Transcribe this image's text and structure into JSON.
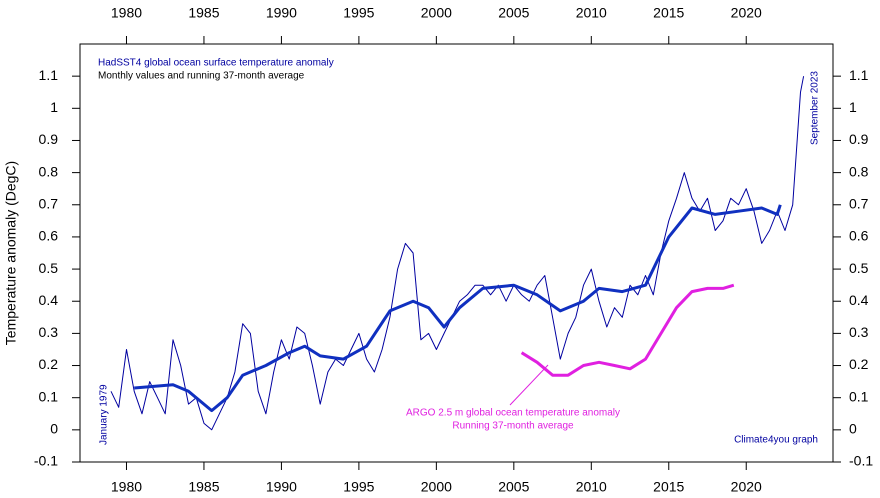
{
  "chart_data": {
    "type": "line",
    "ylabel": "Temperature anomaly (DegC)",
    "annotations": {
      "title": "HadSST4 global ocean surface temperature anomaly",
      "subtitle": "Monthly values and running 37-month average",
      "start": "January 1979",
      "end": "September 2023",
      "argo_1": "ARGO 2.5 m global ocean temperature anomaly",
      "argo_2": "Running 37-month average",
      "credit": "Climate4you graph"
    },
    "xlim": [
      1977,
      2025.6
    ],
    "xticks": [
      1980,
      1985,
      1990,
      1995,
      2000,
      2005,
      2010,
      2015,
      2020
    ],
    "ylim": [
      -0.1,
      1.2
    ],
    "yticks": [
      -0.1,
      0,
      0.1,
      0.2,
      0.3,
      0.4,
      0.5,
      0.6,
      0.7,
      0.8,
      0.9,
      1,
      1.1
    ],
    "series": [
      {
        "color": "#0000a0",
        "width": 1,
        "x": [
          1979.0,
          1979.5,
          1980.0,
          1980.5,
          1981.0,
          1981.5,
          1982.0,
          1982.5,
          1983.0,
          1983.5,
          1984.0,
          1984.5,
          1985.0,
          1985.5,
          1986.0,
          1986.5,
          1987.0,
          1987.5,
          1988.0,
          1988.5,
          1989.0,
          1989.5,
          1990.0,
          1990.5,
          1991.0,
          1991.5,
          1992.0,
          1992.5,
          1993.0,
          1993.5,
          1994.0,
          1994.5,
          1995.0,
          1995.5,
          1996.0,
          1996.5,
          1997.0,
          1997.5,
          1998.0,
          1998.5,
          1999.0,
          1999.5,
          2000.0,
          2000.5,
          2001.0,
          2001.5,
          2002.0,
          2002.5,
          2003.0,
          2003.5,
          2004.0,
          2004.5,
          2005.0,
          2005.5,
          2006.0,
          2006.5,
          2007.0,
          2007.5,
          2008.0,
          2008.5,
          2009.0,
          2009.5,
          2010.0,
          2010.5,
          2011.0,
          2011.5,
          2012.0,
          2012.5,
          2013.0,
          2013.5,
          2014.0,
          2014.5,
          2015.0,
          2015.5,
          2016.0,
          2016.5,
          2017.0,
          2017.5,
          2018.0,
          2018.5,
          2019.0,
          2019.5,
          2020.0,
          2020.5,
          2021.0,
          2021.5,
          2022.0,
          2022.5,
          2023.0,
          2023.5,
          2023.7
        ],
        "values": [
          0.12,
          0.07,
          0.25,
          0.12,
          0.05,
          0.15,
          0.1,
          0.05,
          0.28,
          0.2,
          0.08,
          0.1,
          0.02,
          0.0,
          0.05,
          0.1,
          0.18,
          0.33,
          0.3,
          0.12,
          0.05,
          0.18,
          0.28,
          0.22,
          0.32,
          0.3,
          0.2,
          0.08,
          0.18,
          0.22,
          0.2,
          0.25,
          0.3,
          0.22,
          0.18,
          0.25,
          0.35,
          0.5,
          0.58,
          0.55,
          0.28,
          0.3,
          0.25,
          0.3,
          0.35,
          0.4,
          0.42,
          0.45,
          0.45,
          0.42,
          0.45,
          0.4,
          0.45,
          0.42,
          0.4,
          0.45,
          0.48,
          0.35,
          0.22,
          0.3,
          0.35,
          0.45,
          0.5,
          0.4,
          0.32,
          0.38,
          0.35,
          0.45,
          0.42,
          0.48,
          0.42,
          0.55,
          0.65,
          0.72,
          0.8,
          0.72,
          0.68,
          0.72,
          0.62,
          0.65,
          0.72,
          0.7,
          0.75,
          0.68,
          0.58,
          0.62,
          0.68,
          0.62,
          0.7,
          1.05,
          1.1
        ]
      },
      {
        "color": "#1030c0",
        "width": 3,
        "x": [
          1980.5,
          1983,
          1984,
          1985.5,
          1986.5,
          1987.5,
          1989,
          1990.5,
          1991.5,
          1992.5,
          1994,
          1995.5,
          1997,
          1998.5,
          1999.5,
          2000.5,
          2001.5,
          2003,
          2005,
          2006.5,
          2008,
          2009.5,
          2010.5,
          2012,
          2013.5,
          2015,
          2016.5,
          2018,
          2019.5,
          2021,
          2022,
          2022.2
        ],
        "values": [
          0.13,
          0.14,
          0.12,
          0.06,
          0.1,
          0.17,
          0.2,
          0.24,
          0.26,
          0.23,
          0.22,
          0.26,
          0.37,
          0.4,
          0.38,
          0.32,
          0.38,
          0.44,
          0.45,
          0.42,
          0.37,
          0.4,
          0.44,
          0.43,
          0.45,
          0.6,
          0.69,
          0.67,
          0.68,
          0.69,
          0.67,
          0.7
        ]
      },
      {
        "color": "#e020e0",
        "width": 3,
        "x": [
          2005.5,
          2006.5,
          2007.5,
          2008.5,
          2009.5,
          2010.5,
          2011.5,
          2012.5,
          2013.5,
          2014.5,
          2015.5,
          2016.5,
          2017.5,
          2018.5,
          2019.2
        ],
        "values": [
          0.24,
          0.21,
          0.17,
          0.17,
          0.2,
          0.21,
          0.2,
          0.19,
          0.22,
          0.3,
          0.38,
          0.43,
          0.44,
          0.44,
          0.45
        ]
      }
    ]
  }
}
